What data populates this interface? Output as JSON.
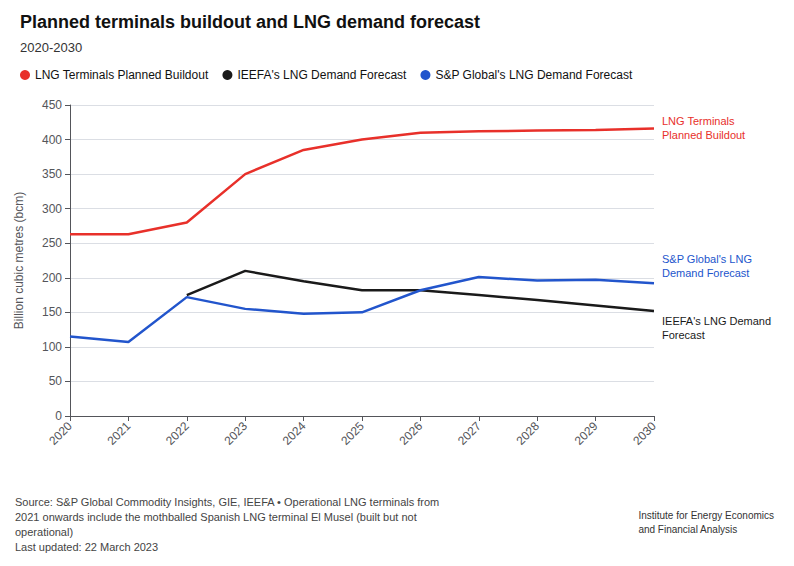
{
  "chart_data": {
    "type": "line",
    "title": "Planned terminals buildout and LNG demand forecast",
    "subtitle": "2020-2030",
    "x": [
      2020,
      2021,
      2022,
      2023,
      2024,
      2025,
      2026,
      2027,
      2028,
      2029,
      2030
    ],
    "xlim": [
      2020,
      2030
    ],
    "xticks": [
      2020,
      2021,
      2022,
      2023,
      2024,
      2025,
      2026,
      2027,
      2028,
      2029,
      2030
    ],
    "ylim": [
      0,
      450
    ],
    "yticks": [
      0,
      50,
      100,
      150,
      200,
      250,
      300,
      350,
      400,
      450
    ],
    "ylabel": "Billion cubic metres (bcm)",
    "grid": true,
    "legend": "top",
    "series": [
      {
        "name": "LNG Terminals Planned Buildout",
        "color": "#e8302a",
        "values": [
          263,
          263,
          280,
          350,
          385,
          400,
          410,
          412,
          413,
          414,
          416
        ],
        "annotation": "LNG Terminals\nPlanned Buildout"
      },
      {
        "name": "IEEFA's LNG Demand Forecast",
        "color": "#1a1a1a",
        "values": [
          null,
          null,
          175,
          210,
          195,
          182,
          182,
          175,
          168,
          160,
          152
        ],
        "annotation": "IEEFA's LNG Demand\nForecast"
      },
      {
        "name": "S&P Global's LNG Demand Forecast",
        "color": "#2255cc",
        "values": [
          115,
          107,
          172,
          155,
          148,
          150,
          182,
          201,
          196,
          197,
          192
        ],
        "annotation": "S&P Global's LNG\nDemand Forecast"
      }
    ],
    "source": "Source: S&P Global Commodity Insights, GIE, IEEFA • Operational LNG terminals from\n2021 onwards include the mothballed Spanish LNG terminal El Musel (built but not\noperational)\nLast updated: 22 March 2023",
    "credit": "Institute for Energy Economics\nand Financial Analysis"
  }
}
